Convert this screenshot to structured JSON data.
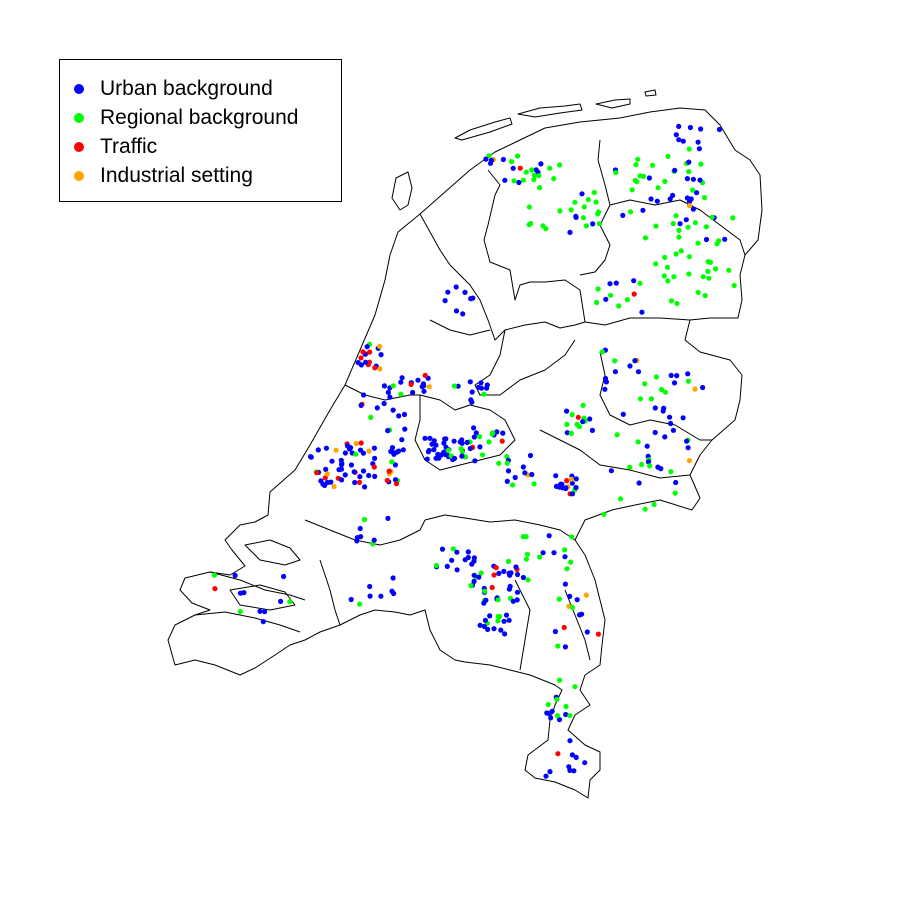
{
  "colors": {
    "urban": "#0000ff",
    "regional": "#00ff00",
    "traffic": "#ff0000",
    "industrial": "#ffa500"
  },
  "legend": {
    "items": [
      {
        "label": "Urban background",
        "color": "#0000ff"
      },
      {
        "label": "Regional background",
        "color": "#00ff00"
      },
      {
        "label": "Traffic",
        "color": "#ff0000"
      },
      {
        "label": "Industrial setting",
        "color": "#ffa500"
      }
    ]
  }
}
